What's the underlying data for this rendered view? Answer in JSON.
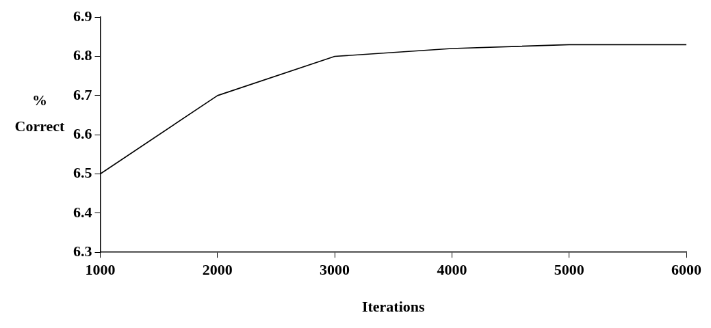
{
  "chart_data": {
    "type": "line",
    "xlabel": "Iterations",
    "ylabel": "% Correct",
    "x": [
      1000,
      2000,
      3000,
      4000,
      5000,
      6000
    ],
    "series": [
      {
        "color": "#000000",
        "values": [
          6.5,
          6.7,
          6.8,
          6.82,
          6.83,
          6.83
        ]
      }
    ],
    "xlim": [
      1000,
      6000
    ],
    "xticks": [
      1000,
      2000,
      3000,
      4000,
      5000,
      6000
    ],
    "ylim": [
      6.3,
      6.9
    ],
    "yticks": [
      6.3,
      6.4,
      6.5,
      6.6,
      6.7,
      6.8,
      6.9
    ],
    "legend": false,
    "marker": "none",
    "line_style": "solid"
  }
}
